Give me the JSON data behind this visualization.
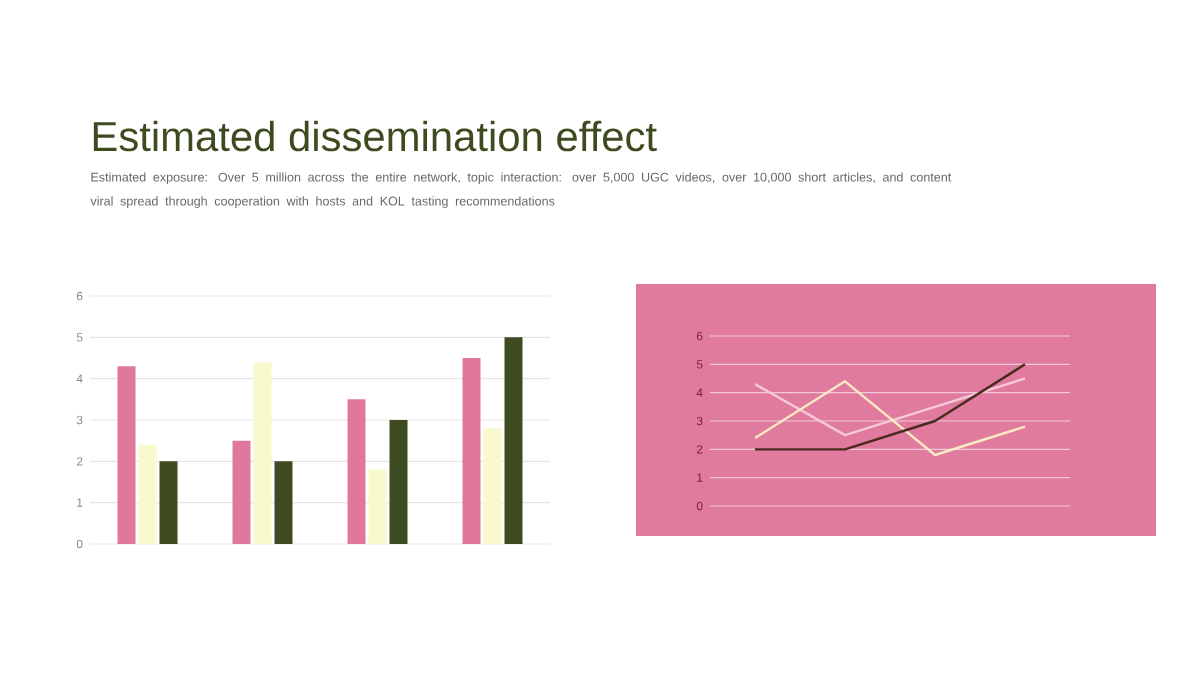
{
  "chart_data": [
    {
      "type": "bar",
      "title": "Estimated dissemination effect",
      "subtitle": "Estimated exposure: Over 5 million across the entire network, topic interaction: over 5,000 UGC videos, over 10,000 short articles, and content viral spread through cooperation with hosts and KOL tasting recommendations",
      "categories": [
        null,
        null,
        null,
        null
      ],
      "series": [
        {
          "color": "#e0789c",
          "values": [
            4.3,
            2.5,
            3.5,
            4.5
          ]
        },
        {
          "color": "#f8f9cc",
          "values": [
            2.4,
            4.4,
            1.8,
            2.8
          ]
        },
        {
          "color": "#3e4a1f",
          "values": [
            2,
            2,
            3,
            5
          ]
        }
      ],
      "ylim": [
        0,
        6
      ],
      "yticks": [
        0,
        1,
        2,
        3,
        4,
        5,
        6
      ],
      "grid": "y",
      "tick_labels": "y"
    },
    {
      "type": "line",
      "categories": [
        null,
        null,
        null,
        null
      ],
      "series": [
        {
          "color": "#f6c9da",
          "values": [
            4.3,
            2.5,
            3.5,
            4.5
          ]
        },
        {
          "color": "#fbe9c2",
          "values": [
            2.4,
            4.4,
            1.8,
            2.8
          ]
        },
        {
          "color": "#4a2a1e",
          "values": [
            2,
            2,
            3,
            5
          ]
        }
      ],
      "ylim": [
        0,
        6
      ],
      "yticks": [
        0,
        1,
        2,
        3,
        4,
        5,
        6
      ],
      "grid": "y",
      "tick_labels": "y",
      "marker": "none",
      "line_style": "solid"
    }
  ]
}
